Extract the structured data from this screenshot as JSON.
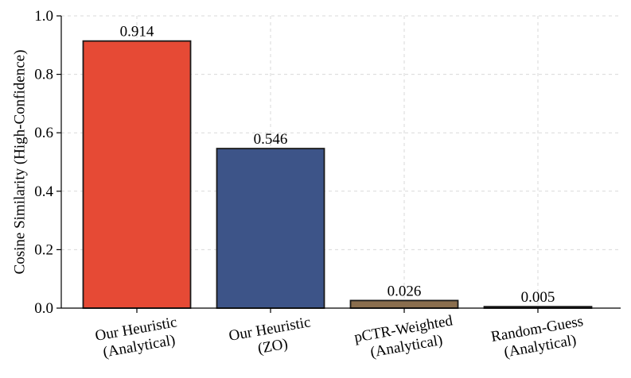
{
  "chart_data": {
    "type": "bar",
    "title": "",
    "xlabel": "",
    "ylabel": "Cosine Similarity (High-Confidence)",
    "ylim": [
      0.0,
      1.0
    ],
    "yticks": [
      0.0,
      0.2,
      0.4,
      0.6,
      0.8,
      1.0
    ],
    "ytick_labels": [
      "0.0",
      "0.2",
      "0.4",
      "0.6",
      "0.8",
      "1.0"
    ],
    "grid": true,
    "categories": [
      [
        "Our Heuristic",
        "(Analytical)"
      ],
      [
        "Our Heuristic",
        "(ZO)"
      ],
      [
        "pCTR-Weighted",
        "(Analytical)"
      ],
      [
        "Random-Guess",
        "(Analytical)"
      ]
    ],
    "values": [
      0.914,
      0.546,
      0.026,
      0.005
    ],
    "value_labels": [
      "0.914",
      "0.546",
      "0.026",
      "0.005"
    ],
    "colors": [
      "#e64a35",
      "#3d5488",
      "#8a6e4e",
      "#222222"
    ]
  }
}
